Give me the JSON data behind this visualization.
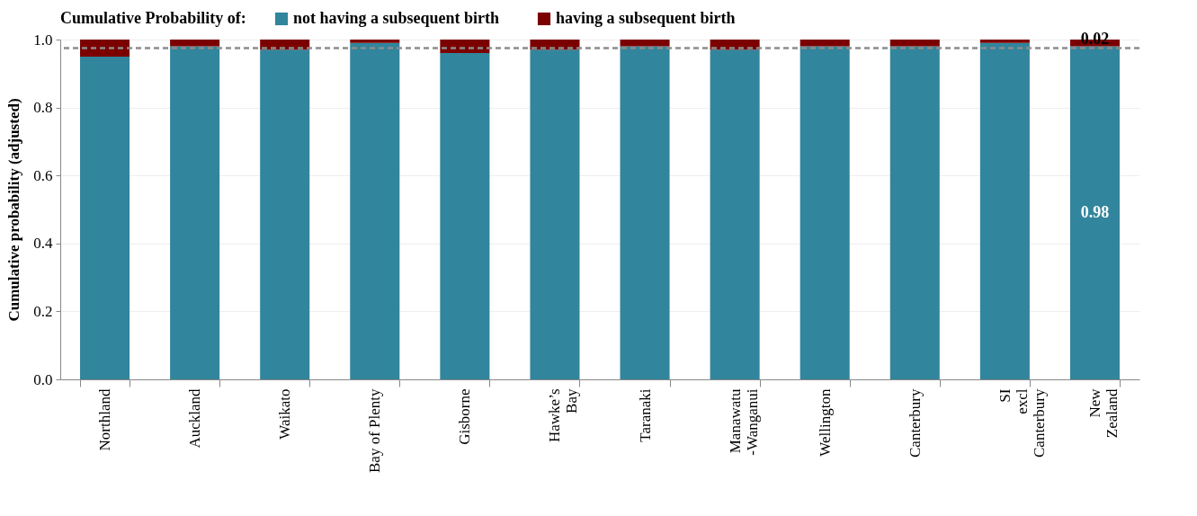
{
  "chart_data": {
    "type": "bar",
    "stacked": true,
    "legend_title": "Cumulative Probability of:",
    "ylabel": "Cumulative probability (adjusted)",
    "categories": [
      "Northland",
      "Auckland",
      "Waikato",
      "Bay of Plenty",
      "Gisborne",
      "Hawke’s\nBay",
      "Taranaki",
      "Manawatu\n-Wanganui",
      "Wellington",
      "Canterbury",
      "SI\nexcl\nCanterbury",
      "New\nZealand"
    ],
    "series": [
      {
        "name": "not having a subsequent birth",
        "color": "#31859c",
        "values": [
          0.95,
          0.98,
          0.97,
          0.99,
          0.96,
          0.97,
          0.98,
          0.97,
          0.98,
          0.98,
          0.99,
          0.98
        ],
        "value_labels": [
          null,
          null,
          null,
          null,
          null,
          null,
          null,
          null,
          null,
          null,
          null,
          "0.98"
        ]
      },
      {
        "name": "having a subsequent birth",
        "color": "#7b0000",
        "values": [
          0.05,
          0.02,
          0.03,
          0.01,
          0.04,
          0.03,
          0.02,
          0.03,
          0.02,
          0.02,
          0.01,
          0.02
        ],
        "value_labels": [
          null,
          null,
          null,
          null,
          null,
          null,
          null,
          null,
          null,
          null,
          null,
          "0.02"
        ]
      }
    ],
    "ylim": [
      0,
      1
    ],
    "yticks": [
      {
        "value": 0,
        "label": "0.0"
      },
      0.2,
      0.4,
      0.6,
      0.8,
      {
        "value": 1,
        "label": "1.0"
      }
    ],
    "grid": "y",
    "legend": "top",
    "ref_lines": [
      {
        "axis": "y",
        "value": 0.975,
        "color": "#8c8c8c",
        "line_style": "dashed"
      }
    ]
  }
}
